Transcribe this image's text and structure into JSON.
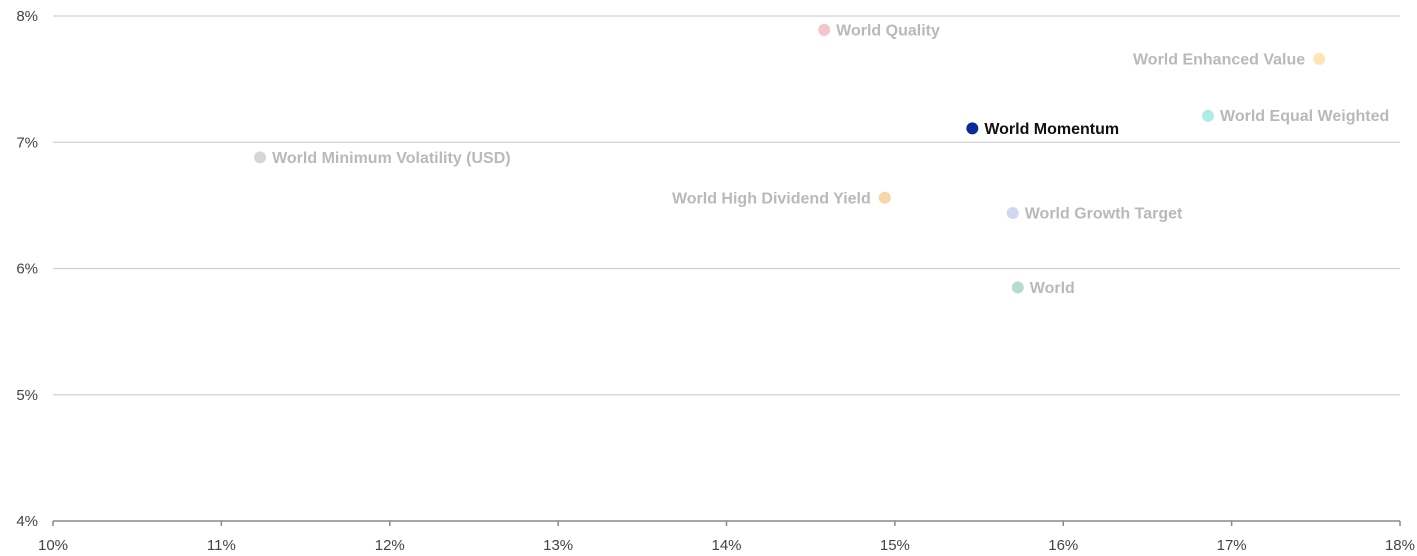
{
  "chart_data": {
    "type": "scatter",
    "title": "",
    "xlabel": "",
    "ylabel": "",
    "xlim": [
      10,
      18
    ],
    "ylim": [
      4,
      8
    ],
    "grid": "horizontal",
    "x_ticks": [
      10,
      11,
      12,
      13,
      14,
      15,
      16,
      17,
      18
    ],
    "y_ticks": [
      4,
      5,
      6,
      7,
      8
    ],
    "x_tick_labels": [
      "10%",
      "11%",
      "12%",
      "13%",
      "14%",
      "15%",
      "16%",
      "17%",
      "18%"
    ],
    "y_tick_labels": [
      "4%",
      "5%",
      "6%",
      "7%",
      "8%"
    ],
    "points": [
      {
        "name": "World Quality",
        "x": 14.58,
        "y": 7.89,
        "color": "#f6c4cc",
        "label_color": "#b9b9b9",
        "label_side": "right",
        "highlight": false
      },
      {
        "name": "World Enhanced Value",
        "x": 17.52,
        "y": 7.66,
        "color": "#fbe6b4",
        "label_color": "#b9b9b9",
        "label_side": "left",
        "highlight": false
      },
      {
        "name": "World Equal Weighted",
        "x": 16.86,
        "y": 7.21,
        "color": "#b0ece6",
        "label_color": "#b9b9b9",
        "label_side": "right",
        "highlight": false
      },
      {
        "name": "World Momentum",
        "x": 15.46,
        "y": 7.11,
        "color": "#0a2c9b",
        "label_color": "#111111",
        "label_side": "right",
        "highlight": true
      },
      {
        "name": "World Minimum Volatility (USD)",
        "x": 11.23,
        "y": 6.88,
        "color": "#d6d6d6",
        "label_color": "#b9b9b9",
        "label_side": "right",
        "highlight": false
      },
      {
        "name": "World High Dividend Yield",
        "x": 14.94,
        "y": 6.56,
        "color": "#f8d6a8",
        "label_color": "#b9b9b9",
        "label_side": "left",
        "highlight": false
      },
      {
        "name": "World Growth Target",
        "x": 15.7,
        "y": 6.44,
        "color": "#cfd8f0",
        "label_color": "#b9b9b9",
        "label_side": "right",
        "highlight": false
      },
      {
        "name": "World",
        "x": 15.73,
        "y": 5.85,
        "color": "#b7dccb",
        "label_color": "#b9b9b9",
        "label_side": "right",
        "highlight": false
      }
    ]
  }
}
